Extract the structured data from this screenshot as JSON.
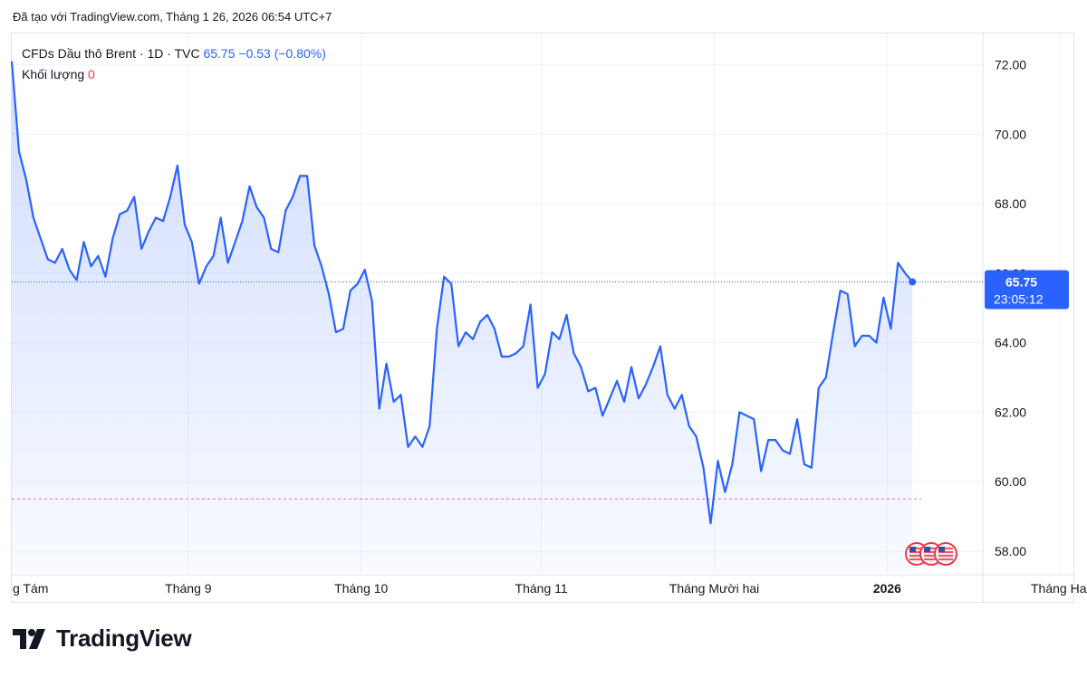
{
  "header": {
    "created_with": "Đã tạo với TradingView.com, Tháng 1 26, 2026 06:54 UTC+7"
  },
  "legend": {
    "symbol": "CFDs Dầu thô Brent · 1D · TVC",
    "last": "65.75",
    "change": "−0.53 (−0.80%)",
    "volume_label": "Khối lượng",
    "volume_value": "0"
  },
  "price_badge": {
    "price": "65.75",
    "countdown": "23:05:12"
  },
  "footer": {
    "brand": "TradingView"
  },
  "colors": {
    "line": "#2962ff",
    "fill": "#2962ff",
    "grid": "#f0f3fa",
    "badge": "#2962ff",
    "prev_close": "#f23645"
  },
  "chart_data": {
    "type": "area",
    "ylim": [
      57.4,
      72.9
    ],
    "y_ticks": [
      "72.00",
      "70.00",
      "68.00",
      "66.00",
      "64.00",
      "62.00",
      "60.00",
      "58.00"
    ],
    "y_tick_values": [
      72,
      70,
      68,
      66,
      64,
      62,
      60,
      58
    ],
    "x_tick_labels": [
      "g Tám",
      "Tháng 9",
      "Tháng 10",
      "Tháng 11",
      "Tháng Mười hai",
      "2026",
      "Tháng Hai"
    ],
    "x_tick_index": [
      0,
      24.5,
      48.5,
      73.5,
      97.5,
      121.5,
      145.5
    ],
    "last_price": 65.75,
    "prev_close_line": 59.5,
    "values": [
      72.1,
      69.5,
      68.7,
      67.6,
      67.0,
      66.4,
      66.3,
      66.7,
      66.1,
      65.8,
      66.9,
      66.2,
      66.5,
      65.9,
      67.0,
      67.7,
      67.8,
      68.2,
      66.7,
      67.2,
      67.6,
      67.5,
      68.2,
      69.1,
      67.4,
      66.9,
      65.7,
      66.2,
      66.5,
      67.6,
      66.3,
      66.9,
      67.5,
      68.5,
      67.9,
      67.6,
      66.7,
      66.6,
      67.8,
      68.2,
      68.8,
      68.8,
      66.8,
      66.2,
      65.4,
      64.3,
      64.4,
      65.5,
      65.7,
      66.1,
      65.2,
      62.1,
      63.4,
      62.3,
      62.5,
      61.0,
      61.3,
      61.0,
      61.6,
      64.4,
      65.9,
      65.7,
      63.9,
      64.3,
      64.1,
      64.6,
      64.8,
      64.4,
      63.6,
      63.6,
      63.7,
      63.9,
      65.1,
      62.7,
      63.1,
      64.3,
      64.1,
      64.8,
      63.7,
      63.3,
      62.6,
      62.7,
      61.9,
      62.4,
      62.9,
      62.3,
      63.3,
      62.4,
      62.8,
      63.3,
      63.9,
      62.5,
      62.1,
      62.5,
      61.6,
      61.3,
      60.4,
      58.8,
      60.6,
      59.7,
      60.5,
      62.0,
      61.9,
      61.8,
      60.3,
      61.2,
      61.2,
      60.9,
      60.8,
      61.8,
      60.5,
      60.4,
      62.7,
      63.0,
      64.3,
      65.5,
      65.4,
      63.9,
      64.2,
      64.2,
      64.0,
      65.3,
      64.4,
      66.3,
      66.0,
      65.75
    ]
  }
}
